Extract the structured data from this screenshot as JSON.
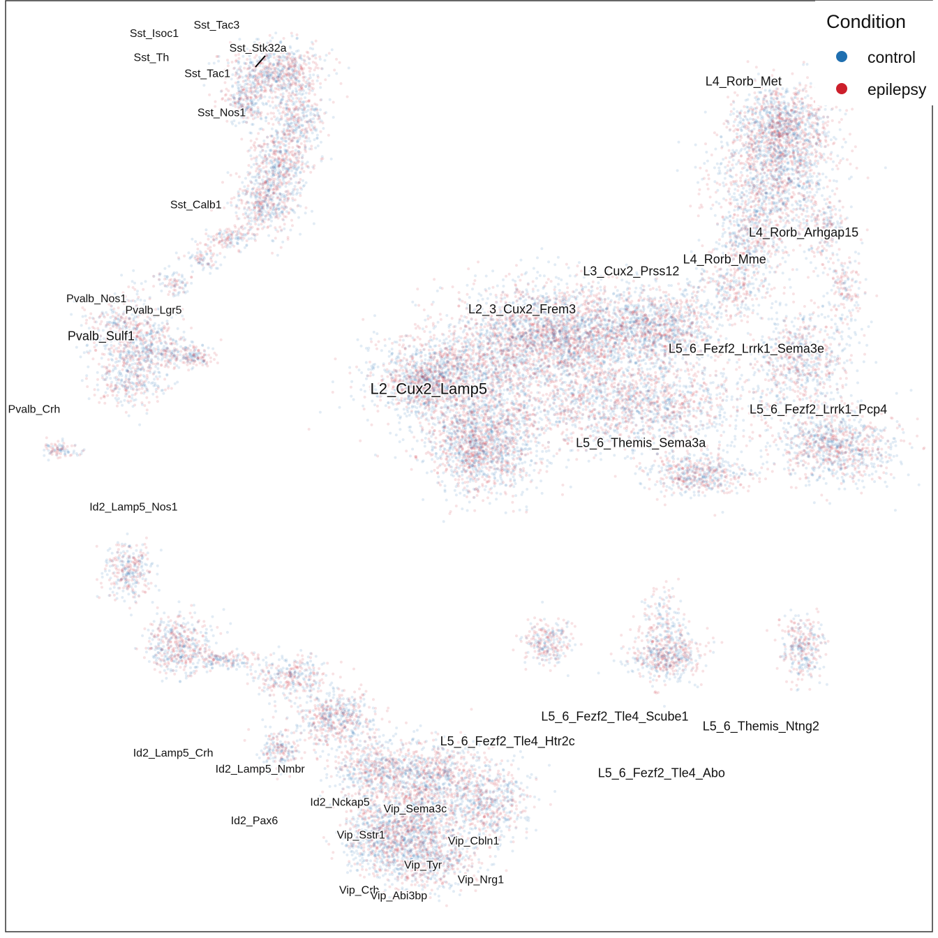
{
  "chart_data": {
    "type": "scatter",
    "title": "",
    "xlabel": "",
    "ylabel": "",
    "grid": false,
    "legend": {
      "title": "Condition",
      "placement": "top-right",
      "entries": [
        {
          "name": "control",
          "color": "#1f6fb0"
        },
        {
          "name": "epilepsy",
          "color": "#cc1f2b"
        }
      ]
    },
    "series": [
      {
        "name": "control",
        "color": "#1f6fb0"
      },
      {
        "name": "epilepsy",
        "color": "#cc1f2b"
      }
    ],
    "clusters": [
      {
        "label": "Sst_Tac3",
        "x": 5.92,
        "y": 99.12,
        "control_share": 0.5
      },
      {
        "label": "Sst_Isoc1",
        "x": 4.17,
        "y": 98.17,
        "control_share": 0.5
      },
      {
        "label": "Sst_Stk32a",
        "x": 7.08,
        "y": 96.49,
        "control_share": 0.45
      },
      {
        "label": "Sst_Th",
        "x": 4.09,
        "y": 95.39,
        "control_share": 0.5
      },
      {
        "label": "Sst_Tac1",
        "x": 5.66,
        "y": 93.55,
        "control_share": 0.55
      },
      {
        "label": "Sst_Nos1",
        "x": 6.06,
        "y": 89.06,
        "control_share": 0.6
      },
      {
        "label": "Sst_Calb1",
        "x": 5.34,
        "y": 78.47,
        "control_share": 0.6
      },
      {
        "label": "Pvalb_Nos1",
        "x": 2.55,
        "y": 67.69,
        "control_share": 0.55
      },
      {
        "label": "Pvalb_Lgr5",
        "x": 4.15,
        "y": 66.38,
        "control_share": 0.35
      },
      {
        "label": "Pvalb_Sulf1",
        "x": 2.68,
        "y": 63.36,
        "control_share": 0.6
      },
      {
        "label": "Pvalb_Crh",
        "x": 0.8,
        "y": 54.96,
        "control_share": 0.4
      },
      {
        "label": "L4_Rorb_Met",
        "x": 20.7,
        "y": 92.65,
        "control_share": 0.6
      },
      {
        "label": "L4_Rorb_Arhgap15",
        "x": 22.39,
        "y": 75.28,
        "control_share": 0.55
      },
      {
        "label": "L4_Rorb_Mme",
        "x": 20.17,
        "y": 72.17,
        "control_share": 0.5
      },
      {
        "label": "L3_Cux2_Prss12",
        "x": 17.55,
        "y": 70.83,
        "control_share": 0.65
      },
      {
        "label": "L2_3_Cux2_Frem3",
        "x": 14.49,
        "y": 66.46,
        "control_share": 0.6
      },
      {
        "label": "L5_6_Fezf2_Lrrk1_Sema3e",
        "x": 20.78,
        "y": 61.9,
        "control_share": 0.5
      },
      {
        "label": "L2_Cux2_Lamp5",
        "x": 11.87,
        "y": 57.28,
        "control_share": 0.55
      },
      {
        "label": "L5_6_Fezf2_Lrrk1_Pcp4",
        "x": 22.8,
        "y": 54.93,
        "control_share": 0.4
      },
      {
        "label": "L5_6_Themis_Sema3a",
        "x": 17.82,
        "y": 51.09,
        "control_share": 0.5
      },
      {
        "label": "Id2_Lamp5_Nos1",
        "x": 3.59,
        "y": 43.76,
        "control_share": 0.5
      },
      {
        "label": "L5_6_Fezf2_Tle4_Scube1",
        "x": 17.09,
        "y": 19.64,
        "control_share": 0.5
      },
      {
        "label": "L5_6_Themis_Ntng2",
        "x": 21.19,
        "y": 18.52,
        "control_share": 0.5
      },
      {
        "label": "L5_6_Fezf2_Tle4_Htr2c",
        "x": 14.08,
        "y": 16.8,
        "control_share": 0.4
      },
      {
        "label": "Id2_Lamp5_Crh",
        "x": 4.7,
        "y": 15.47,
        "control_share": 0.4
      },
      {
        "label": "L5_6_Fezf2_Tle4_Abo",
        "x": 18.4,
        "y": 13.15,
        "control_share": 0.5
      },
      {
        "label": "Id2_Lamp5_Nmbr",
        "x": 7.14,
        "y": 13.63,
        "control_share": 0.45
      },
      {
        "label": "Id2_Nckap5",
        "x": 9.38,
        "y": 9.83,
        "control_share": 0.5
      },
      {
        "label": "Vip_Sema3c",
        "x": 11.49,
        "y": 9.04,
        "control_share": 0.5
      },
      {
        "label": "Id2_Pax6",
        "x": 6.98,
        "y": 7.7,
        "control_share": 0.45
      },
      {
        "label": "Vip_Sstr1",
        "x": 9.97,
        "y": 6.04,
        "control_share": 0.5
      },
      {
        "label": "Vip_Cbln1",
        "x": 13.13,
        "y": 5.36,
        "control_share": 0.45
      },
      {
        "label": "Vip_Tyr",
        "x": 11.71,
        "y": 2.58,
        "control_share": 0.5
      },
      {
        "label": "Vip_Nrg1",
        "x": 13.33,
        "y": 0.92,
        "control_share": 0.45
      },
      {
        "label": "Vip_Crh",
        "x": 9.92,
        "y": -0.28,
        "control_share": 0.5
      },
      {
        "label": "Vip_Abi3bp",
        "x": 11.03,
        "y": -0.93,
        "control_share": 0.5
      }
    ]
  }
}
